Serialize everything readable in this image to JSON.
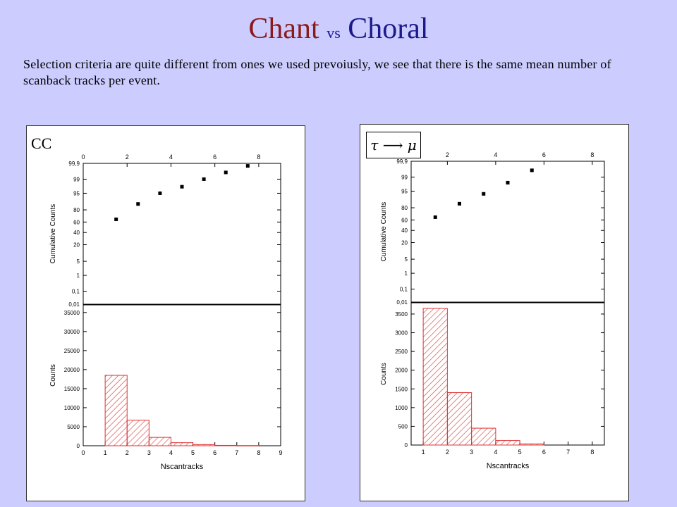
{
  "title": {
    "word1": "Chant",
    "word2": "vs",
    "word3": "Choral"
  },
  "subtitle": "Selection criteria are quite different from ones we used prevoiusly, we see that there is the same mean number of scanback tracks per event.",
  "colors": {
    "background": "#ccccff",
    "bar_stroke": "#e03030",
    "title_red": "#8b1a1a",
    "title_blue": "#1a1a9b"
  },
  "left_panel": {
    "label": "CC"
  },
  "right_panel": {
    "label": "τ ⟶ μ"
  },
  "chart_data": [
    {
      "type": "scatter",
      "panel": "left",
      "role": "cumulative",
      "ylabel": "Cumulative Counts",
      "xlim": [
        0,
        9
      ],
      "top_ticks": [
        "0",
        "2",
        "4",
        "6",
        "8"
      ],
      "y_ticks": [
        "0,01",
        "0,1",
        "1",
        "5",
        "20",
        "40",
        "60",
        "80",
        "95",
        "99",
        "99,9"
      ],
      "x": [
        1.5,
        2.5,
        3.5,
        4.5,
        5.5,
        6.5,
        7.5
      ],
      "y": [
        65.0,
        87.0,
        95.0,
        97.5,
        99.0,
        99.6,
        99.85
      ]
    },
    {
      "type": "bar",
      "panel": "left",
      "role": "histogram",
      "xlabel": "Nscantracks",
      "ylabel": "Counts",
      "xlim": [
        0,
        9
      ],
      "ylim": [
        0,
        37000
      ],
      "x_ticks": [
        "0",
        "1",
        "2",
        "3",
        "4",
        "5",
        "6",
        "7",
        "8",
        "9"
      ],
      "y_ticks": [
        "0",
        "5000",
        "10000",
        "15000",
        "20000",
        "25000",
        "30000",
        "35000"
      ],
      "bin_edges": [
        1,
        2,
        3,
        4,
        5,
        6,
        7,
        8
      ],
      "values": [
        18500,
        6700,
        2200,
        800,
        300,
        100,
        50
      ]
    },
    {
      "type": "scatter",
      "panel": "right",
      "role": "cumulative",
      "ylabel": "Cumulative Counts",
      "xlim": [
        0.5,
        8.5
      ],
      "top_ticks": [
        "2",
        "4",
        "6",
        "8"
      ],
      "y_ticks": [
        "0,01",
        "0,1",
        "1",
        "5",
        "20",
        "40",
        "60",
        "80",
        "95",
        "99",
        "99,9"
      ],
      "x": [
        1.5,
        2.5,
        3.5,
        4.5,
        5.5
      ],
      "y": [
        65.0,
        85.0,
        93.5,
        98.0,
        99.6
      ]
    },
    {
      "type": "bar",
      "panel": "right",
      "role": "histogram",
      "xlabel": "Nscantracks",
      "ylabel": "Counts",
      "xlim": [
        0.5,
        8.5
      ],
      "ylim": [
        0,
        3800
      ],
      "x_ticks": [
        "1",
        "2",
        "3",
        "4",
        "5",
        "6",
        "7",
        "8"
      ],
      "y_ticks": [
        "0",
        "500",
        "1000",
        "1500",
        "2000",
        "2500",
        "3000",
        "3500"
      ],
      "bin_edges": [
        1,
        2,
        3,
        4,
        5,
        6
      ],
      "values": [
        3650,
        1400,
        450,
        120,
        30
      ]
    }
  ]
}
